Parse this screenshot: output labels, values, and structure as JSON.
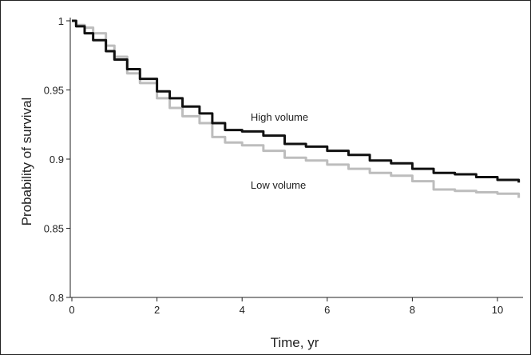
{
  "chart_data": {
    "type": "line",
    "title": "",
    "xlabel": "Time, yr",
    "ylabel": "Probability of survival",
    "xlim": [
      0,
      10.5
    ],
    "ylim": [
      0.8,
      1.0
    ],
    "x_ticks": [
      0,
      2,
      4,
      6,
      8,
      10
    ],
    "y_ticks": [
      0.8,
      0.85,
      0.9,
      0.95,
      1.0
    ],
    "y_tick_labels": [
      "0.8",
      "0.85",
      "0.9",
      "0.95",
      "1"
    ],
    "x_tick_labels": [
      "0",
      "2",
      "4",
      "6",
      "8",
      "10"
    ],
    "grid": false,
    "legend": "none",
    "series": [
      {
        "name": "High volume",
        "color": "#111111",
        "x": [
          0,
          0.1,
          0.3,
          0.5,
          0.8,
          1.0,
          1.3,
          1.6,
          2.0,
          2.3,
          2.6,
          3.0,
          3.3,
          3.6,
          4.0,
          4.5,
          5.0,
          5.5,
          6.0,
          6.5,
          7.0,
          7.5,
          8.0,
          8.5,
          9.0,
          9.5,
          10.0,
          10.5
        ],
        "y": [
          1.0,
          0.996,
          0.991,
          0.986,
          0.978,
          0.972,
          0.965,
          0.958,
          0.949,
          0.944,
          0.938,
          0.933,
          0.926,
          0.921,
          0.92,
          0.917,
          0.911,
          0.909,
          0.906,
          0.903,
          0.899,
          0.897,
          0.893,
          0.89,
          0.889,
          0.887,
          0.885,
          0.883
        ]
      },
      {
        "name": "Low volume",
        "color": "#bdbdbd",
        "x": [
          0,
          0.1,
          0.3,
          0.5,
          0.8,
          1.0,
          1.3,
          1.6,
          2.0,
          2.3,
          2.6,
          3.0,
          3.3,
          3.6,
          4.0,
          4.5,
          5.0,
          5.5,
          6.0,
          6.5,
          7.0,
          7.5,
          8.0,
          8.5,
          9.0,
          9.5,
          10.0,
          10.5
        ],
        "y": [
          1.0,
          0.997,
          0.995,
          0.991,
          0.982,
          0.974,
          0.962,
          0.955,
          0.944,
          0.937,
          0.931,
          0.926,
          0.916,
          0.912,
          0.91,
          0.906,
          0.901,
          0.899,
          0.896,
          0.893,
          0.89,
          0.888,
          0.884,
          0.878,
          0.877,
          0.876,
          0.875,
          0.872
        ]
      }
    ],
    "annotations": [
      {
        "text": "High volume",
        "x": 4.2,
        "y": 0.93
      },
      {
        "text": "Low volume",
        "x": 4.2,
        "y": 0.881
      }
    ]
  }
}
